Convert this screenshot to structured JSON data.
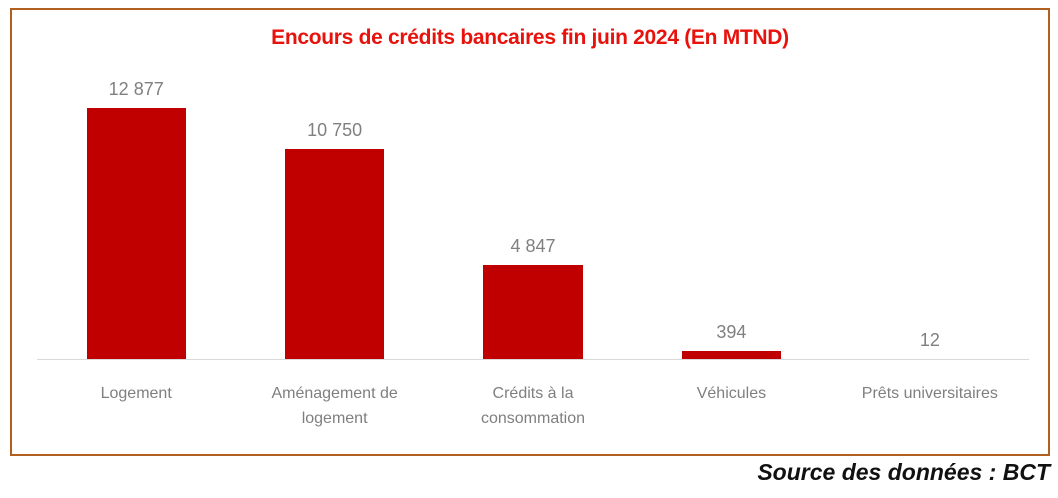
{
  "chart_data": {
    "type": "bar",
    "title": "Encours de crédits bancaires fin juin 2024 (En MTND)",
    "categories": [
      "Logement",
      "Aménagement de logement",
      "Crédits à la consommation",
      "Véhicules",
      "Prêts universitaires"
    ],
    "values": [
      12877,
      10750,
      4847,
      394,
      12
    ],
    "value_labels": [
      "12 877",
      "10 750",
      "4 847",
      "394",
      "12"
    ],
    "xlabel": "",
    "ylabel": "",
    "ylim": [
      0,
      12877
    ],
    "grid": false,
    "legend": false,
    "colors": {
      "bar": "#C00000",
      "title": "#E8120D",
      "data_label": "#808080",
      "category_label": "#7F7F7F",
      "axis_line": "#D9D9D9",
      "frame_border": "#B2601F"
    }
  },
  "footer": {
    "source_text": "Source des données : BCT"
  }
}
